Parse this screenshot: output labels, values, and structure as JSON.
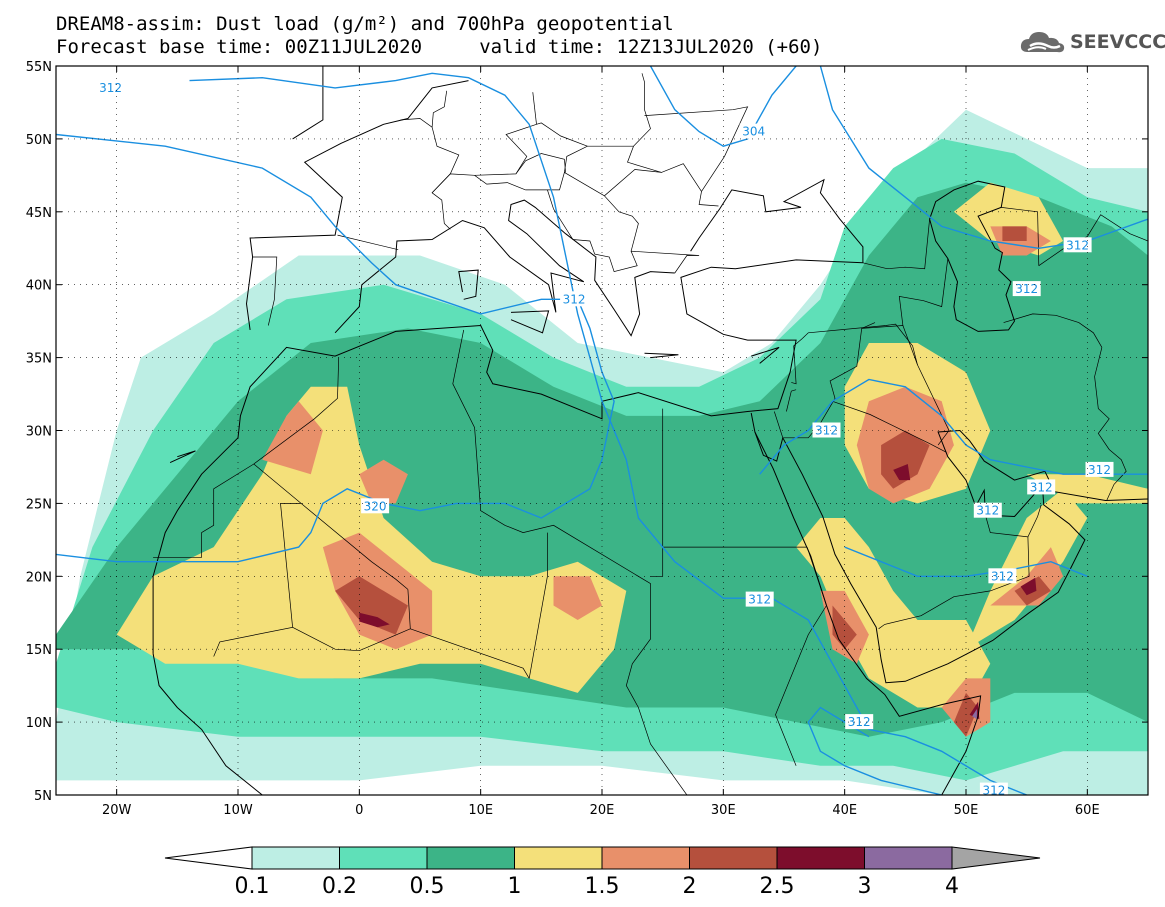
{
  "header": {
    "title_line1": "DREAM8-assim: Dust load (g/m²) and 700hPa geopotential",
    "title_line2": "Forecast base time: 00Z11JUL2020     valid time: 12Z13JUL2020 (+60)"
  },
  "logo": {
    "text": "SEEVCCC",
    "icon": "cloud-icon"
  },
  "map": {
    "lon_range": [
      -25,
      65
    ],
    "lat_range": [
      5,
      55
    ],
    "lat_ticks": [
      {
        "value": 55,
        "label": "55N"
      },
      {
        "value": 50,
        "label": "50N"
      },
      {
        "value": 45,
        "label": "45N"
      },
      {
        "value": 40,
        "label": "40N"
      },
      {
        "value": 35,
        "label": "35N"
      },
      {
        "value": 30,
        "label": "30N"
      },
      {
        "value": 25,
        "label": "25N"
      },
      {
        "value": 20,
        "label": "20N"
      },
      {
        "value": 15,
        "label": "15N"
      },
      {
        "value": 10,
        "label": "10N"
      },
      {
        "value": 5,
        "label": "5N"
      }
    ],
    "lon_ticks": [
      {
        "value": -20,
        "label": "20W"
      },
      {
        "value": -10,
        "label": "10W"
      },
      {
        "value": 0,
        "label": "0"
      },
      {
        "value": 10,
        "label": "10E"
      },
      {
        "value": 20,
        "label": "20E"
      },
      {
        "value": 30,
        "label": "30E"
      },
      {
        "value": 40,
        "label": "40E"
      },
      {
        "value": 50,
        "label": "50E"
      },
      {
        "value": 60,
        "label": "60E"
      }
    ],
    "geopotential_labels": [
      {
        "text": "312",
        "lon": -20.5,
        "lat": 53.5
      },
      {
        "text": "304",
        "lon": 32.5,
        "lat": 50.5
      },
      {
        "text": "312",
        "lon": 17.7,
        "lat": 39.0
      },
      {
        "text": "320",
        "lon": 1.3,
        "lat": 24.8
      },
      {
        "text": "312",
        "lon": 33.0,
        "lat": 18.4
      },
      {
        "text": "312",
        "lon": 41.2,
        "lat": 10.0
      },
      {
        "text": "312",
        "lon": 53.0,
        "lat": 20.0
      },
      {
        "text": "312",
        "lon": 61.0,
        "lat": 27.3
      },
      {
        "text": "312",
        "lon": 56.2,
        "lat": 26.1
      },
      {
        "text": "312",
        "lon": 38.5,
        "lat": 30.0
      },
      {
        "text": "312",
        "lon": 59.2,
        "lat": 42.7
      },
      {
        "text": "312",
        "lon": 55.0,
        "lat": 39.7
      },
      {
        "text": "312",
        "lon": 51.8,
        "lat": 24.5
      },
      {
        "text": "312",
        "lon": 52.3,
        "lat": 5.3
      }
    ]
  },
  "colorbar": {
    "levels": [
      "0.1",
      "0.2",
      "0.5",
      "1",
      "1.5",
      "2",
      "2.5",
      "3",
      "4"
    ],
    "colors": [
      "#ffffff",
      "#bdeee4",
      "#5fe0b8",
      "#3cb487",
      "#f4e07a",
      "#e8906a",
      "#b5503d",
      "#7d0d2c",
      "#8b6aa0",
      "#a4a4a4"
    ]
  },
  "dust_colors": {
    "c1": "#bdeee4",
    "c2": "#5fe0b8",
    "c3": "#3cb487",
    "c4": "#f4e07a",
    "c5": "#e8906a",
    "c6": "#b5503d",
    "c7": "#7d0d2c",
    "c8": "#8b6aa0"
  },
  "contour_color": "#1a8fe0"
}
